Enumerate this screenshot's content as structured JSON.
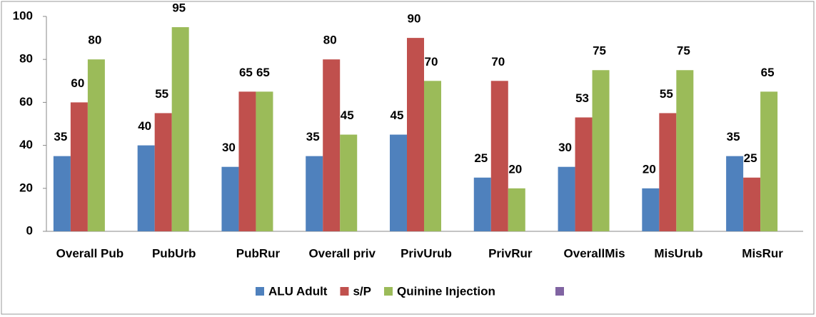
{
  "chart_data": {
    "type": "bar",
    "categories": [
      "Overall Pub",
      "PubUrb",
      "PubRur",
      "Overall priv",
      "PrivUrub",
      "PrivRur",
      "OverallMis",
      "MisUrub",
      "MisRur"
    ],
    "series": [
      {
        "name": "ALU Adult",
        "color": "#4f81bd",
        "values": [
          35,
          40,
          30,
          35,
          45,
          25,
          30,
          20,
          35
        ]
      },
      {
        "name": "s/P",
        "color": "#c0504d",
        "values": [
          60,
          55,
          65,
          80,
          90,
          70,
          53,
          55,
          25
        ]
      },
      {
        "name": "Quinine Injection",
        "color": "#9bbb59",
        "values": [
          80,
          95,
          65,
          45,
          70,
          20,
          75,
          75,
          65
        ]
      }
    ],
    "ylim": [
      0,
      100
    ],
    "yticks": [
      0,
      20,
      40,
      60,
      80,
      100
    ],
    "grid": false,
    "legend": "bottom"
  }
}
